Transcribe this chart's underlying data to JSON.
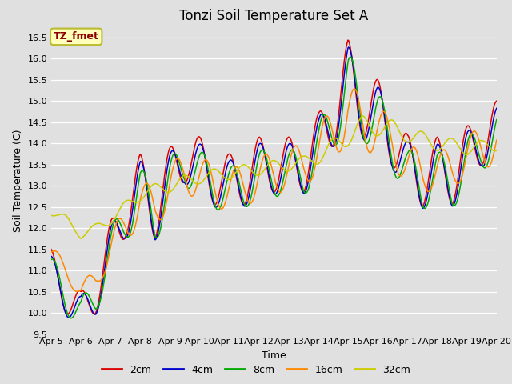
{
  "title": "Tonzi Soil Temperature Set A",
  "xlabel": "Time",
  "ylabel": "Soil Temperature (C)",
  "annotation": "TZ_fmet",
  "annotation_color": "#8B0000",
  "annotation_bg": "#FFFFBB",
  "ylim": [
    9.5,
    16.75
  ],
  "series_colors": {
    "2cm": "#DD0000",
    "4cm": "#0000CC",
    "8cm": "#00AA00",
    "16cm": "#FF8800",
    "32cm": "#CCCC00"
  },
  "x_ticks": [
    "Apr 5",
    "Apr 6",
    "Apr 7",
    "Apr 8",
    "Apr 9",
    "Apr 10",
    "Apr 11",
    "Apr 12",
    "Apr 13",
    "Apr 14",
    "Apr 15",
    "Apr 16",
    "Apr 17",
    "Apr 18",
    "Apr 19",
    "Apr 20"
  ],
  "bg_color": "#E0E0E0",
  "grid_color": "#FFFFFF",
  "title_fontsize": 12,
  "axis_fontsize": 9,
  "tick_fontsize": 8,
  "legend_fontsize": 9
}
